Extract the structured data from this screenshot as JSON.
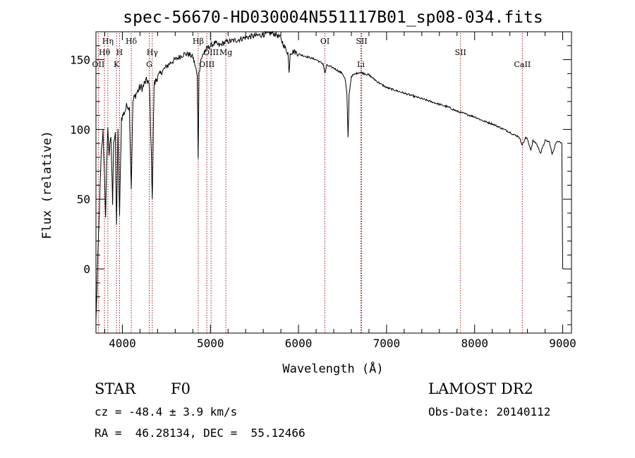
{
  "chart_data": {
    "type": "line",
    "title": "spec-56670-HD030004N551117B01_sp08-034.fits",
    "xlabel": "Wavelength (Å)",
    "ylabel": "Flux (relative)",
    "xlim": [
      3700,
      9100
    ],
    "ylim": [
      -46,
      170
    ],
    "xticks": [
      4000,
      5000,
      6000,
      7000,
      8000,
      9000
    ],
    "yticks": [
      0,
      50,
      100,
      150
    ],
    "grid": false,
    "series": [
      {
        "x": [
          3700,
          3720,
          3740,
          3760,
          3780,
          3800,
          3810,
          3820,
          3835,
          3850,
          3870,
          3889,
          3900,
          3920,
          3933,
          3950,
          3968,
          3990,
          4020,
          4040,
          4060,
          4080,
          4101,
          4120,
          4150,
          4180,
          4200,
          4230,
          4260,
          4290,
          4310,
          4340,
          4360,
          4400,
          4430,
          4470,
          4500,
          4550,
          4600,
          4650,
          4700,
          4750,
          4800,
          4830,
          4850,
          4861,
          4870,
          4890,
          4920,
          4960,
          5000,
          5050,
          5100,
          5150,
          5200,
          5300,
          5400,
          5500,
          5600,
          5700,
          5750,
          5800,
          5850,
          5880,
          5893,
          5905,
          5950,
          6000,
          6050,
          6100,
          6150,
          6200,
          6250,
          6280,
          6300,
          6320,
          6400,
          6450,
          6500,
          6530,
          6550,
          6563,
          6575,
          6600,
          6650,
          6700,
          6800,
          6900,
          7000,
          7100,
          7200,
          7300,
          7400,
          7500,
          7600,
          7700,
          7800,
          7900,
          8000,
          8100,
          8200,
          8300,
          8400,
          8450,
          8500,
          8542,
          8580,
          8600,
          8640,
          8662,
          8700,
          8750,
          8800,
          8850,
          8880,
          8920,
          8960,
          8990,
          9000
        ],
        "values": [
          -38,
          5,
          45,
          82,
          98,
          62,
          35,
          75,
          100,
          82,
          95,
          48,
          92,
          95,
          30,
          98,
          38,
          108,
          112,
          115,
          118,
          115,
          58,
          120,
          125,
          128,
          130,
          130,
          134,
          135,
          128,
          52,
          132,
          138,
          140,
          143,
          145,
          148,
          150,
          152,
          154,
          154,
          152,
          145,
          138,
          80,
          140,
          150,
          154,
          158,
          160,
          162,
          160,
          162,
          163,
          164,
          166,
          167,
          168,
          169,
          168,
          165,
          158,
          155,
          140,
          155,
          156,
          154,
          153,
          152,
          151,
          150,
          148,
          147,
          140,
          146,
          144,
          142,
          140,
          136,
          125,
          94,
          125,
          138,
          140,
          141,
          139,
          134,
          130,
          128,
          126,
          124,
          122,
          120,
          118,
          116,
          113,
          111,
          109,
          106,
          104,
          101,
          98,
          96,
          95,
          89,
          94,
          93,
          85,
          92,
          90,
          83,
          92,
          91,
          82,
          90,
          92,
          90,
          0
        ]
      }
    ],
    "lines": [
      {
        "label": "Hη",
        "x": 3835,
        "row": 1
      },
      {
        "label": "Hθ",
        "x": 3797,
        "row": 2
      },
      {
        "label": "OII",
        "x": 3727,
        "row": 3
      },
      {
        "label": "H",
        "x": 3968,
        "row": 2
      },
      {
        "label": "K",
        "x": 3933,
        "row": 3
      },
      {
        "label": "Hδ",
        "x": 4101,
        "row": 1
      },
      {
        "label": "Hγ",
        "x": 4340,
        "row": 2
      },
      {
        "label": "G",
        "x": 4305,
        "row": 3
      },
      {
        "label": "Hβ",
        "x": 4861,
        "row": 1
      },
      {
        "label": "OIII",
        "x": 4959,
        "row": 3
      },
      {
        "label": "OIII",
        "x": 5007,
        "row": 2
      },
      {
        "label": "Mg",
        "x": 5175,
        "row": 2
      },
      {
        "label": "OI",
        "x": 6300,
        "row": 1
      },
      {
        "label": "SII",
        "x": 6717,
        "row": 1
      },
      {
        "label": "Li",
        "x": 6708,
        "row": 3
      },
      {
        "label": "SII",
        "x": 7840,
        "row": 2
      },
      {
        "label": "CaII",
        "x": 8542,
        "row": 3
      }
    ]
  },
  "info": {
    "class": "STAR",
    "subclass": "F0",
    "survey": "LAMOST DR2",
    "cz": "cz = -48.4 ± 3.9 km/s",
    "obs_date": "Obs-Date: 20140112",
    "coords": "RA =  46.28134, DEC =  55.12466"
  }
}
